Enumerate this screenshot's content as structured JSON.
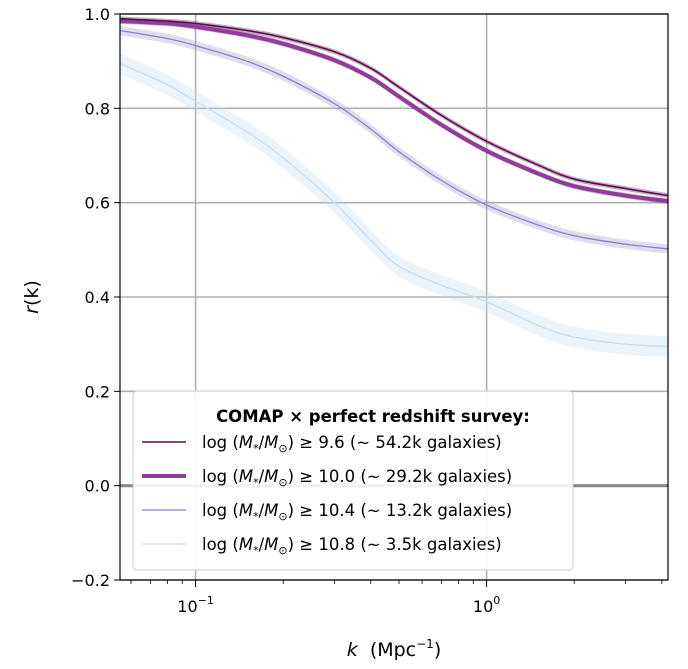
{
  "chart_data": {
    "type": "line",
    "xlabel": "k",
    "xlabel_unit": "(Mpc",
    "xlabel_unit_exp": "−1",
    "xlabel_unit_close": ")",
    "ylabel": "r",
    "ylabel_arg": "(k)",
    "x_scale": "log",
    "xlim": [
      0.055,
      4.2
    ],
    "ylim": [
      -0.2,
      1.0
    ],
    "grid": true,
    "y_ticks": [
      {
        "value": -0.2,
        "label": "−0.2"
      },
      {
        "value": 0.0,
        "label": "0.0"
      },
      {
        "value": 0.2,
        "label": "0.2"
      },
      {
        "value": 0.4,
        "label": "0.4"
      },
      {
        "value": 0.6,
        "label": "0.6"
      },
      {
        "value": 0.8,
        "label": "0.8"
      },
      {
        "value": 1.0,
        "label": "1.0"
      }
    ],
    "x_ticks": [
      {
        "value": 0.1,
        "base": "10",
        "exp": "−1"
      },
      {
        "value": 1.0,
        "base": "10",
        "exp": "0"
      }
    ],
    "legend": {
      "placement": "lower-left",
      "title": "COMAP × perfect redshift survey:"
    },
    "x": [
      0.055,
      0.08,
      0.1,
      0.15,
      0.2,
      0.3,
      0.4,
      0.5,
      0.7,
      1.0,
      1.5,
      2.0,
      3.0,
      4.2
    ],
    "series": [
      {
        "name": "log (M*/M⊙) ≥ 9.6 (∼ 54.2k galaxies)",
        "legend_prefix": "log (",
        "legend_M": "M",
        "legend_sub1": "*",
        "legend_slash": "/",
        "legend_sub2": "⊙",
        "legend_suffix": ") ≥ 9.6 (∼ 54.2k galaxies)",
        "color": "#5e0e4f",
        "band_color": "#6b1a5e",
        "line_width": 1.6,
        "band_halfwidth": 0.005,
        "values": [
          0.99,
          0.985,
          0.98,
          0.965,
          0.95,
          0.92,
          0.885,
          0.845,
          0.785,
          0.73,
          0.68,
          0.65,
          0.63,
          0.615
        ]
      },
      {
        "name": "log (M*/M⊙) ≥ 10.0 (∼ 29.2k galaxies)",
        "legend_prefix": "log (",
        "legend_M": "M",
        "legend_sub1": "*",
        "legend_slash": "/",
        "legend_sub2": "⊙",
        "legend_suffix": ") ≥ 10.0 (∼ 29.2k galaxies)",
        "color": "#8e3d98",
        "band_color": "#8e3d98",
        "line_width": 4,
        "band_halfwidth": 0.006,
        "values": [
          0.985,
          0.98,
          0.973,
          0.955,
          0.937,
          0.902,
          0.865,
          0.825,
          0.765,
          0.71,
          0.662,
          0.635,
          0.615,
          0.603
        ]
      },
      {
        "name": "log (M*/M⊙) ≥ 10.4 (∼ 13.2k galaxies)",
        "legend_prefix": "log (",
        "legend_M": "M",
        "legend_sub1": "*",
        "legend_slash": "/",
        "legend_sub2": "⊙",
        "legend_suffix": ") ≥ 10.4 (∼ 13.2k galaxies)",
        "color": "#8a82bf",
        "band_color": "#a49ed1",
        "line_width": 1.3,
        "band_halfwidth": 0.01,
        "values": [
          0.965,
          0.948,
          0.933,
          0.9,
          0.868,
          0.81,
          0.756,
          0.708,
          0.647,
          0.595,
          0.553,
          0.53,
          0.512,
          0.502
        ]
      },
      {
        "name": "log (M*/M⊙) ≥ 10.8 (∼ 3.5k galaxies)",
        "legend_prefix": "log (",
        "legend_M": "M",
        "legend_sub1": "*",
        "legend_slash": "/",
        "legend_sub2": "⊙",
        "legend_suffix": ") ≥ 10.8 (∼ 3.5k galaxies)",
        "color": "#c9dff0",
        "band_color": "#c9dff0",
        "line_width": 1.3,
        "band_halfwidth": 0.022,
        "values": [
          0.895,
          0.85,
          0.815,
          0.75,
          0.695,
          0.6,
          0.52,
          0.465,
          0.425,
          0.39,
          0.34,
          0.315,
          0.3,
          0.295
        ]
      }
    ]
  }
}
